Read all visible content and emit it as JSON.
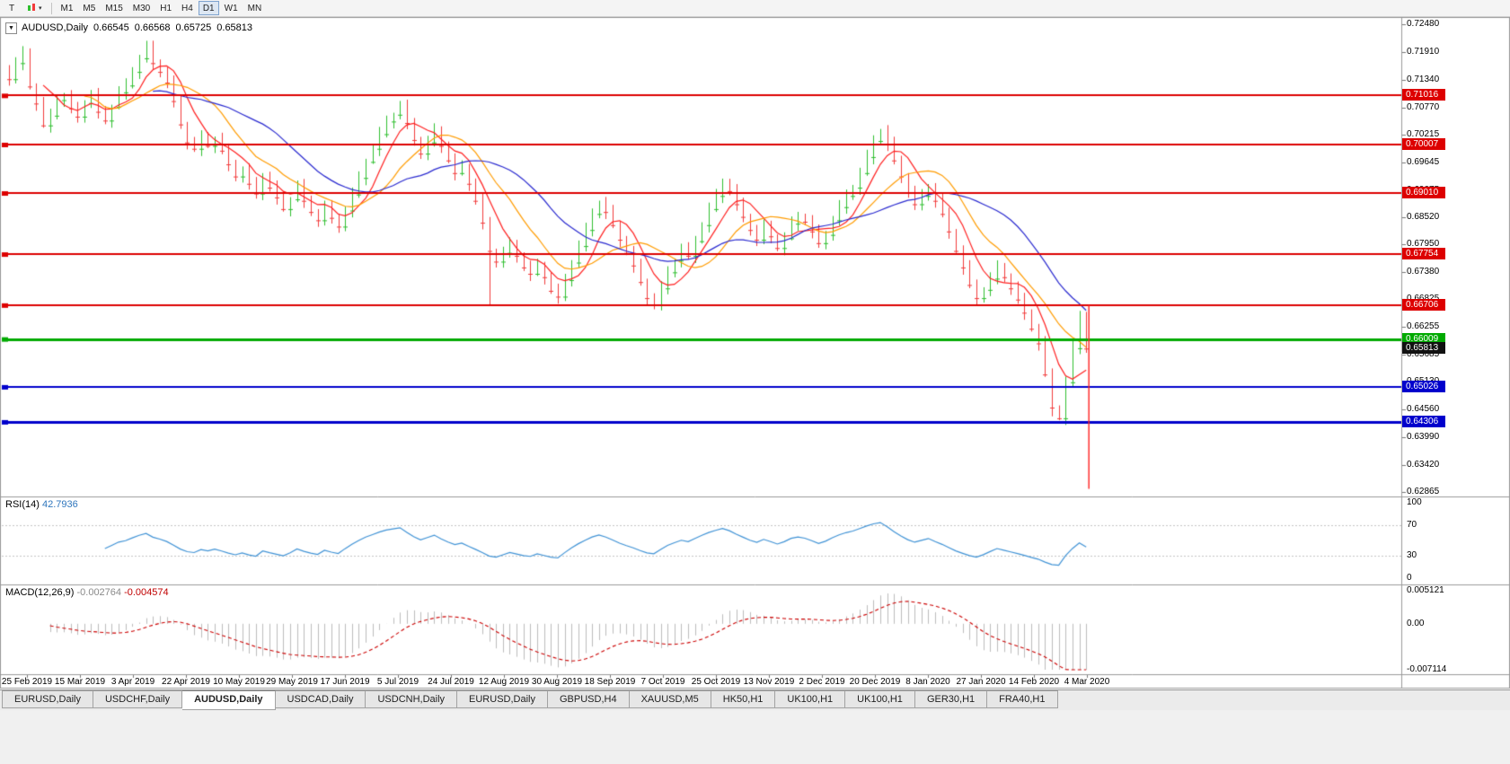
{
  "toolbar": {
    "pointer_button": "T",
    "objects_dropdown_arrow": "▾",
    "timeframes": [
      "M1",
      "M5",
      "M15",
      "M30",
      "H1",
      "H4",
      "D1",
      "W1",
      "MN"
    ],
    "active_timeframe": "D1"
  },
  "chart_header": {
    "expander": "▼",
    "symbol": "AUDUSD,Daily",
    "open": "0.66545",
    "high": "0.66568",
    "low": "0.65725",
    "close": "0.65813"
  },
  "indicators": {
    "rsi": {
      "name": "RSI(14)",
      "value": "42.7936"
    },
    "macd": {
      "name": "MACD(12,26,9)",
      "main_value": "-0.002764",
      "signal_value": "-0.004574"
    }
  },
  "chart_data": {
    "type": "candlestick",
    "symbol": "AUDUSD",
    "timeframe": "Daily",
    "price_range": [
      0.62865,
      0.7248
    ],
    "price_axis_ticks": [
      0.7248,
      0.7191,
      0.7134,
      0.7077,
      0.70215,
      0.69645,
      0.69075,
      0.6852,
      0.6795,
      0.6738,
      0.66825,
      0.66255,
      0.65685,
      0.6513,
      0.6456,
      0.6399,
      0.6342,
      0.62865
    ],
    "dates": [
      "25 Feb 2019",
      "15 Mar 2019",
      "3 Apr 2019",
      "22 Apr 2019",
      "10 May 2019",
      "29 May 2019",
      "17 Jun 2019",
      "5 Jul 2019",
      "24 Jul 2019",
      "12 Aug 2019",
      "30 Aug 2019",
      "18 Sep 2019",
      "7 Oct 2019",
      "25 Oct 2019",
      "13 Nov 2019",
      "2 Dec 2019",
      "20 Dec 2019",
      "8 Jan 2020",
      "27 Jan 2020",
      "14 Feb 2020",
      "4 Mar 2020"
    ],
    "closes": [
      0.7135,
      0.7168,
      0.7188,
      0.712,
      0.7085,
      0.704,
      0.706,
      0.7092,
      0.7098,
      0.7075,
      0.7058,
      0.7086,
      0.7102,
      0.7068,
      0.705,
      0.7078,
      0.7108,
      0.7122,
      0.715,
      0.7178,
      0.72,
      0.7168,
      0.715,
      0.7128,
      0.709,
      0.7042,
      0.7005,
      0.6992,
      0.7015,
      0.6998,
      0.7012,
      0.6988,
      0.696,
      0.6935,
      0.6948,
      0.692,
      0.69,
      0.6935,
      0.6912,
      0.6892,
      0.6868,
      0.6888,
      0.6915,
      0.6885,
      0.6862,
      0.6845,
      0.6872,
      0.685,
      0.6832,
      0.6865,
      0.6898,
      0.6932,
      0.6965,
      0.6992,
      0.7022,
      0.7048,
      0.7062,
      0.7078,
      0.7045,
      0.701,
      0.6982,
      0.7005,
      0.703,
      0.6998,
      0.6968,
      0.6942,
      0.6955,
      0.692,
      0.6885,
      0.684,
      0.6782,
      0.676,
      0.6778,
      0.6795,
      0.6772,
      0.6748,
      0.6735,
      0.6752,
      0.6728,
      0.67,
      0.6688,
      0.6722,
      0.6758,
      0.6792,
      0.6825,
      0.6858,
      0.688,
      0.6862,
      0.6835,
      0.6805,
      0.6778,
      0.6752,
      0.6718,
      0.6685,
      0.6672,
      0.6705,
      0.6738,
      0.6762,
      0.6785,
      0.6772,
      0.6802,
      0.6835,
      0.6868,
      0.6895,
      0.6922,
      0.6905,
      0.6878,
      0.6852,
      0.6825,
      0.6805,
      0.6832,
      0.6812,
      0.6788,
      0.6808,
      0.6838,
      0.6852,
      0.6842,
      0.6822,
      0.6798,
      0.6815,
      0.6845,
      0.6872,
      0.6895,
      0.6912,
      0.6942,
      0.6975,
      0.7008,
      0.7028,
      0.7002,
      0.6968,
      0.6935,
      0.6902,
      0.6878,
      0.6895,
      0.6912,
      0.6885,
      0.6858,
      0.6822,
      0.6782,
      0.6748,
      0.6712,
      0.6685,
      0.6702,
      0.6725,
      0.6748,
      0.6728,
      0.6705,
      0.6682,
      0.6655,
      0.6622,
      0.6592,
      0.6528,
      0.646,
      0.6438,
      0.6512,
      0.6582,
      0.6648,
      0.65813
    ],
    "last_candle": {
      "open": 0.66545,
      "high": 0.66568,
      "low": 0.65725,
      "close": 0.65813
    },
    "wick_low_overrides": {
      "70": 0.6672,
      "152": 0.6442,
      "153": 0.6434
    },
    "candle_up_color": "#2fbf2f",
    "candle_down_color": "#f23b3b",
    "moving_averages": [
      {
        "period": 6,
        "color": "#ff2020"
      },
      {
        "period": 12,
        "color": "#ff9c00"
      },
      {
        "period": 22,
        "color": "#2b2bd0"
      }
    ],
    "hlines": [
      {
        "value": 0.71016,
        "color": "#dd0000",
        "width": 2
      },
      {
        "value": 0.70007,
        "color": "#dd0000",
        "width": 2
      },
      {
        "value": 0.6901,
        "color": "#dd0000",
        "width": 2
      },
      {
        "value": 0.67754,
        "color": "#dd0000",
        "width": 2
      },
      {
        "value": 0.66706,
        "color": "#dd0000",
        "width": 2
      },
      {
        "value": 0.66009,
        "color": "#00aa00",
        "width": 3
      },
      {
        "value": 0.65026,
        "color": "#0000cc",
        "width": 2
      },
      {
        "value": 0.64306,
        "color": "#0000cc",
        "width": 3
      }
    ],
    "bid": {
      "value": 0.65813,
      "color": "#111111"
    },
    "vline": {
      "color": "#ff2222",
      "from": 0.6671,
      "to": 0.6293
    },
    "rsi": {
      "period": 14,
      "value": 42.7936,
      "color": "#4093d6",
      "levels": [
        70,
        30
      ],
      "ticks": [
        100,
        70,
        30,
        0
      ],
      "range": [
        0,
        100
      ]
    },
    "macd": {
      "params": [
        12,
        26,
        9
      ],
      "main": -0.002764,
      "signal": -0.004574,
      "range": [
        -0.007114,
        0.005121
      ],
      "ticks": [
        0.005121,
        0,
        -0.007114
      ],
      "tick_labels": [
        "0.005121",
        "0.00",
        "-0.007114"
      ],
      "hist_color": "#bdbdbd",
      "signal_color": "#cc0000"
    }
  },
  "tabs": {
    "items": [
      "EURUSD,Daily",
      "USDCHF,Daily",
      "AUDUSD,Daily",
      "USDCAD,Daily",
      "USDCNH,Daily",
      "EURUSD,Daily",
      "GBPUSD,H4",
      "XAUUSD,M5",
      "HK50,H1",
      "UK100,H1",
      "UK100,H1",
      "GER30,H1",
      "FRA40,H1"
    ],
    "active_index": 2
  }
}
